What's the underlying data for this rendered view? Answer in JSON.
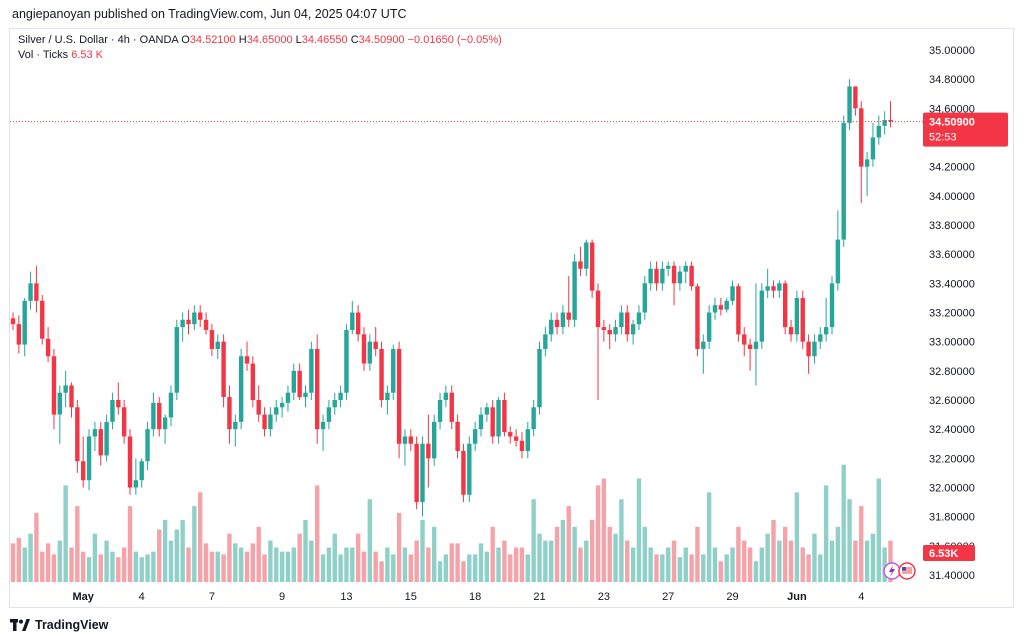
{
  "header": {
    "published_line": "angiepanoyan published on TradingView.com, Jun 04, 2025 04:07 UTC"
  },
  "legend": {
    "symbol": "Silver / U.S. Dollar · 4h · OANDA",
    "open_label": "O",
    "open": "34.52100",
    "high_label": "H",
    "high": "34.65000",
    "low_label": "L",
    "low": "34.46550",
    "close_label": "C",
    "close": "34.50900",
    "change": "−0.01650 (−0.05%)",
    "vol_label": "Vol · Ticks",
    "vol_value": "6.53 K"
  },
  "footer": {
    "brand": "TradingView"
  },
  "colors": {
    "up": "#26a69a",
    "down": "#f23645",
    "vol_up": "#8fd0c9",
    "vol_down": "#f5a3a8"
  },
  "chart_data": {
    "type": "candlestick",
    "timeframe": "4h",
    "ylim": [
      31.4,
      35.0
    ],
    "y_ticks": [
      "31.40000",
      "31.60000",
      "31.80000",
      "32.00000",
      "32.20000",
      "32.40000",
      "32.60000",
      "32.80000",
      "33.00000",
      "33.20000",
      "33.40000",
      "33.60000",
      "33.80000",
      "34.00000",
      "34.20000",
      "34.40000",
      "34.60000",
      "34.80000",
      "35.00000"
    ],
    "x_ticks": [
      {
        "label": "May",
        "index": 12
      },
      {
        "label": "4",
        "index": 22
      },
      {
        "label": "7",
        "index": 34
      },
      {
        "label": "9",
        "index": 46
      },
      {
        "label": "13",
        "index": 57
      },
      {
        "label": "15",
        "index": 68
      },
      {
        "label": "18",
        "index": 79
      },
      {
        "label": "21",
        "index": 90
      },
      {
        "label": "23",
        "index": 101
      },
      {
        "label": "27",
        "index": 112
      },
      {
        "label": "29",
        "index": 123
      },
      {
        "label": "Jun",
        "index": 134
      },
      {
        "label": "4",
        "index": 145
      }
    ],
    "last_price_label": "34.50900",
    "countdown_label": "52:53",
    "volume_label": "6.53K",
    "last_price": 34.509,
    "volume_max": 100,
    "candles": [
      {
        "o": 33.16,
        "h": 33.2,
        "l": 33.08,
        "c": 33.12,
        "v": 28
      },
      {
        "o": 33.12,
        "h": 33.18,
        "l": 32.92,
        "c": 32.98,
        "v": 32
      },
      {
        "o": 32.98,
        "h": 33.3,
        "l": 32.9,
        "c": 33.28,
        "v": 25
      },
      {
        "o": 33.28,
        "h": 33.48,
        "l": 33.22,
        "c": 33.4,
        "v": 35
      },
      {
        "o": 33.4,
        "h": 33.52,
        "l": 33.2,
        "c": 33.28,
        "v": 50
      },
      {
        "o": 33.28,
        "h": 33.32,
        "l": 32.98,
        "c": 33.02,
        "v": 22
      },
      {
        "o": 33.02,
        "h": 33.1,
        "l": 32.86,
        "c": 32.9,
        "v": 28
      },
      {
        "o": 32.9,
        "h": 32.95,
        "l": 32.4,
        "c": 32.5,
        "v": 20
      },
      {
        "o": 32.5,
        "h": 32.7,
        "l": 32.3,
        "c": 32.65,
        "v": 30
      },
      {
        "o": 32.65,
        "h": 32.8,
        "l": 32.55,
        "c": 32.7,
        "v": 70
      },
      {
        "o": 32.7,
        "h": 32.72,
        "l": 32.48,
        "c": 32.55,
        "v": 25
      },
      {
        "o": 32.55,
        "h": 32.6,
        "l": 32.1,
        "c": 32.18,
        "v": 55
      },
      {
        "o": 32.18,
        "h": 32.35,
        "l": 32.0,
        "c": 32.05,
        "v": 22
      },
      {
        "o": 32.05,
        "h": 32.4,
        "l": 31.98,
        "c": 32.35,
        "v": 18
      },
      {
        "o": 32.35,
        "h": 32.45,
        "l": 32.25,
        "c": 32.4,
        "v": 35
      },
      {
        "o": 32.4,
        "h": 32.45,
        "l": 32.15,
        "c": 32.22,
        "v": 20
      },
      {
        "o": 32.22,
        "h": 32.5,
        "l": 32.18,
        "c": 32.45,
        "v": 30
      },
      {
        "o": 32.45,
        "h": 32.65,
        "l": 32.4,
        "c": 32.6,
        "v": 22
      },
      {
        "o": 32.6,
        "h": 32.72,
        "l": 32.5,
        "c": 32.55,
        "v": 18
      },
      {
        "o": 32.55,
        "h": 32.6,
        "l": 32.3,
        "c": 32.35,
        "v": 25
      },
      {
        "o": 32.35,
        "h": 32.4,
        "l": 31.95,
        "c": 32.0,
        "v": 55
      },
      {
        "o": 32.0,
        "h": 32.2,
        "l": 31.95,
        "c": 32.05,
        "v": 22
      },
      {
        "o": 32.05,
        "h": 32.2,
        "l": 32.0,
        "c": 32.18,
        "v": 18
      },
      {
        "o": 32.18,
        "h": 32.45,
        "l": 32.12,
        "c": 32.4,
        "v": 20
      },
      {
        "o": 32.4,
        "h": 32.65,
        "l": 32.35,
        "c": 32.58,
        "v": 22
      },
      {
        "o": 32.58,
        "h": 32.62,
        "l": 32.35,
        "c": 32.4,
        "v": 38
      },
      {
        "o": 32.4,
        "h": 32.5,
        "l": 32.3,
        "c": 32.48,
        "v": 45
      },
      {
        "o": 32.48,
        "h": 32.7,
        "l": 32.42,
        "c": 32.65,
        "v": 30
      },
      {
        "o": 32.65,
        "h": 33.15,
        "l": 32.6,
        "c": 33.1,
        "v": 38
      },
      {
        "o": 33.1,
        "h": 33.2,
        "l": 33.0,
        "c": 33.15,
        "v": 45
      },
      {
        "o": 33.15,
        "h": 33.22,
        "l": 33.05,
        "c": 33.12,
        "v": 25
      },
      {
        "o": 33.12,
        "h": 33.25,
        "l": 33.08,
        "c": 33.2,
        "v": 55
      },
      {
        "o": 33.2,
        "h": 33.25,
        "l": 33.1,
        "c": 33.15,
        "v": 65
      },
      {
        "o": 33.15,
        "h": 33.2,
        "l": 33.05,
        "c": 33.08,
        "v": 28
      },
      {
        "o": 33.08,
        "h": 33.12,
        "l": 32.9,
        "c": 32.95,
        "v": 22
      },
      {
        "o": 32.95,
        "h": 33.05,
        "l": 32.88,
        "c": 33.0,
        "v": 22
      },
      {
        "o": 33.0,
        "h": 33.05,
        "l": 32.55,
        "c": 32.62,
        "v": 20
      },
      {
        "o": 32.62,
        "h": 32.7,
        "l": 32.3,
        "c": 32.4,
        "v": 35
      },
      {
        "o": 32.4,
        "h": 32.5,
        "l": 32.28,
        "c": 32.45,
        "v": 28
      },
      {
        "o": 32.45,
        "h": 32.95,
        "l": 32.4,
        "c": 32.9,
        "v": 25
      },
      {
        "o": 32.9,
        "h": 33.0,
        "l": 32.8,
        "c": 32.85,
        "v": 22
      },
      {
        "o": 32.85,
        "h": 32.9,
        "l": 32.55,
        "c": 32.6,
        "v": 28
      },
      {
        "o": 32.6,
        "h": 32.7,
        "l": 32.45,
        "c": 32.5,
        "v": 40
      },
      {
        "o": 32.5,
        "h": 32.55,
        "l": 32.35,
        "c": 32.4,
        "v": 20
      },
      {
        "o": 32.4,
        "h": 32.55,
        "l": 32.35,
        "c": 32.5,
        "v": 30
      },
      {
        "o": 32.5,
        "h": 32.6,
        "l": 32.45,
        "c": 32.55,
        "v": 25
      },
      {
        "o": 32.55,
        "h": 32.62,
        "l": 32.48,
        "c": 32.58,
        "v": 22
      },
      {
        "o": 32.58,
        "h": 32.7,
        "l": 32.52,
        "c": 32.65,
        "v": 22
      },
      {
        "o": 32.65,
        "h": 32.85,
        "l": 32.6,
        "c": 32.8,
        "v": 25
      },
      {
        "o": 32.8,
        "h": 32.85,
        "l": 32.6,
        "c": 32.62,
        "v": 35
      },
      {
        "o": 32.62,
        "h": 32.7,
        "l": 32.55,
        "c": 32.65,
        "v": 45
      },
      {
        "o": 32.65,
        "h": 33.0,
        "l": 32.6,
        "c": 32.95,
        "v": 30
      },
      {
        "o": 32.95,
        "h": 33.05,
        "l": 32.3,
        "c": 32.4,
        "v": 70
      },
      {
        "o": 32.4,
        "h": 32.5,
        "l": 32.25,
        "c": 32.45,
        "v": 20
      },
      {
        "o": 32.45,
        "h": 32.6,
        "l": 32.4,
        "c": 32.55,
        "v": 25
      },
      {
        "o": 32.55,
        "h": 32.65,
        "l": 32.5,
        "c": 32.6,
        "v": 35
      },
      {
        "o": 32.6,
        "h": 32.7,
        "l": 32.55,
        "c": 32.65,
        "v": 20
      },
      {
        "o": 32.65,
        "h": 33.12,
        "l": 32.6,
        "c": 33.08,
        "v": 25
      },
      {
        "o": 33.08,
        "h": 33.28,
        "l": 33.05,
        "c": 33.2,
        "v": 25
      },
      {
        "o": 33.2,
        "h": 33.25,
        "l": 33.0,
        "c": 33.05,
        "v": 35
      },
      {
        "o": 33.05,
        "h": 33.1,
        "l": 32.8,
        "c": 32.85,
        "v": 22
      },
      {
        "o": 32.85,
        "h": 33.05,
        "l": 32.8,
        "c": 33.0,
        "v": 60
      },
      {
        "o": 33.0,
        "h": 33.1,
        "l": 32.9,
        "c": 32.95,
        "v": 22
      },
      {
        "o": 32.95,
        "h": 33.0,
        "l": 32.55,
        "c": 32.6,
        "v": 15
      },
      {
        "o": 32.6,
        "h": 32.7,
        "l": 32.5,
        "c": 32.65,
        "v": 25
      },
      {
        "o": 32.65,
        "h": 32.98,
        "l": 32.6,
        "c": 32.95,
        "v": 20
      },
      {
        "o": 32.95,
        "h": 33.0,
        "l": 32.2,
        "c": 32.3,
        "v": 50
      },
      {
        "o": 32.3,
        "h": 32.4,
        "l": 32.15,
        "c": 32.35,
        "v": 25
      },
      {
        "o": 32.35,
        "h": 32.4,
        "l": 32.25,
        "c": 32.3,
        "v": 20
      },
      {
        "o": 32.3,
        "h": 32.35,
        "l": 31.85,
        "c": 31.9,
        "v": 30
      },
      {
        "o": 31.9,
        "h": 32.35,
        "l": 31.8,
        "c": 32.3,
        "v": 45
      },
      {
        "o": 32.3,
        "h": 32.5,
        "l": 32.0,
        "c": 32.2,
        "v": 25
      },
      {
        "o": 32.2,
        "h": 32.5,
        "l": 32.15,
        "c": 32.45,
        "v": 40
      },
      {
        "o": 32.45,
        "h": 32.65,
        "l": 32.4,
        "c": 32.6,
        "v": 15
      },
      {
        "o": 32.6,
        "h": 32.7,
        "l": 32.55,
        "c": 32.65,
        "v": 20
      },
      {
        "o": 32.65,
        "h": 32.7,
        "l": 32.4,
        "c": 32.45,
        "v": 28
      },
      {
        "o": 32.45,
        "h": 32.5,
        "l": 32.2,
        "c": 32.25,
        "v": 28
      },
      {
        "o": 32.25,
        "h": 32.3,
        "l": 31.9,
        "c": 31.95,
        "v": 15
      },
      {
        "o": 31.95,
        "h": 32.35,
        "l": 31.9,
        "c": 32.3,
        "v": 20
      },
      {
        "o": 32.3,
        "h": 32.45,
        "l": 32.25,
        "c": 32.4,
        "v": 20
      },
      {
        "o": 32.4,
        "h": 32.55,
        "l": 32.35,
        "c": 32.5,
        "v": 28
      },
      {
        "o": 32.5,
        "h": 32.58,
        "l": 32.45,
        "c": 32.55,
        "v": 22
      },
      {
        "o": 32.55,
        "h": 32.6,
        "l": 32.3,
        "c": 32.35,
        "v": 40
      },
      {
        "o": 32.35,
        "h": 32.62,
        "l": 32.3,
        "c": 32.6,
        "v": 25
      },
      {
        "o": 32.6,
        "h": 32.65,
        "l": 32.35,
        "c": 32.38,
        "v": 30
      },
      {
        "o": 32.38,
        "h": 32.42,
        "l": 32.3,
        "c": 32.35,
        "v": 20
      },
      {
        "o": 32.35,
        "h": 32.4,
        "l": 32.28,
        "c": 32.32,
        "v": 25
      },
      {
        "o": 32.32,
        "h": 32.38,
        "l": 32.2,
        "c": 32.25,
        "v": 25
      },
      {
        "o": 32.25,
        "h": 32.45,
        "l": 32.2,
        "c": 32.4,
        "v": 20
      },
      {
        "o": 32.4,
        "h": 32.6,
        "l": 32.35,
        "c": 32.55,
        "v": 60
      },
      {
        "o": 32.55,
        "h": 33.0,
        "l": 32.5,
        "c": 32.95,
        "v": 35
      },
      {
        "o": 32.95,
        "h": 33.1,
        "l": 32.9,
        "c": 33.05,
        "v": 30
      },
      {
        "o": 33.05,
        "h": 33.2,
        "l": 33.0,
        "c": 33.15,
        "v": 30
      },
      {
        "o": 33.15,
        "h": 33.2,
        "l": 33.05,
        "c": 33.1,
        "v": 40
      },
      {
        "o": 33.1,
        "h": 33.25,
        "l": 33.05,
        "c": 33.2,
        "v": 45
      },
      {
        "o": 33.2,
        "h": 33.45,
        "l": 33.1,
        "c": 33.15,
        "v": 55
      },
      {
        "o": 33.15,
        "h": 33.6,
        "l": 33.1,
        "c": 33.55,
        "v": 40
      },
      {
        "o": 33.55,
        "h": 33.65,
        "l": 33.45,
        "c": 33.5,
        "v": 25
      },
      {
        "o": 33.5,
        "h": 33.7,
        "l": 33.45,
        "c": 33.68,
        "v": 30
      },
      {
        "o": 33.68,
        "h": 33.7,
        "l": 33.3,
        "c": 33.35,
        "v": 45
      },
      {
        "o": 33.35,
        "h": 33.4,
        "l": 32.6,
        "c": 33.1,
        "v": 70
      },
      {
        "o": 33.1,
        "h": 33.15,
        "l": 33.0,
        "c": 33.08,
        "v": 75
      },
      {
        "o": 33.08,
        "h": 33.12,
        "l": 32.95,
        "c": 33.05,
        "v": 40
      },
      {
        "o": 33.05,
        "h": 33.15,
        "l": 33.0,
        "c": 33.1,
        "v": 35
      },
      {
        "o": 33.1,
        "h": 33.25,
        "l": 33.05,
        "c": 33.2,
        "v": 60
      },
      {
        "o": 33.2,
        "h": 33.25,
        "l": 33.0,
        "c": 33.05,
        "v": 30
      },
      {
        "o": 33.05,
        "h": 33.15,
        "l": 32.98,
        "c": 33.12,
        "v": 25
      },
      {
        "o": 33.12,
        "h": 33.25,
        "l": 33.08,
        "c": 33.2,
        "v": 75
      },
      {
        "o": 33.2,
        "h": 33.45,
        "l": 33.15,
        "c": 33.4,
        "v": 40
      },
      {
        "o": 33.4,
        "h": 33.55,
        "l": 33.35,
        "c": 33.5,
        "v": 25
      },
      {
        "o": 33.5,
        "h": 33.55,
        "l": 33.35,
        "c": 33.4,
        "v": 20
      },
      {
        "o": 33.4,
        "h": 33.55,
        "l": 33.35,
        "c": 33.5,
        "v": 20
      },
      {
        "o": 33.5,
        "h": 33.55,
        "l": 33.45,
        "c": 33.52,
        "v": 25
      },
      {
        "o": 33.52,
        "h": 33.55,
        "l": 33.25,
        "c": 33.4,
        "v": 30
      },
      {
        "o": 33.4,
        "h": 33.52,
        "l": 33.35,
        "c": 33.48,
        "v": 18
      },
      {
        "o": 33.48,
        "h": 33.55,
        "l": 33.4,
        "c": 33.52,
        "v": 25
      },
      {
        "o": 33.52,
        "h": 33.55,
        "l": 33.35,
        "c": 33.38,
        "v": 20
      },
      {
        "o": 33.38,
        "h": 33.4,
        "l": 32.9,
        "c": 32.95,
        "v": 40
      },
      {
        "o": 32.95,
        "h": 33.05,
        "l": 32.78,
        "c": 33.0,
        "v": 20
      },
      {
        "o": 33.0,
        "h": 33.25,
        "l": 32.95,
        "c": 33.2,
        "v": 65
      },
      {
        "o": 33.2,
        "h": 33.3,
        "l": 33.15,
        "c": 33.25,
        "v": 25
      },
      {
        "o": 33.25,
        "h": 33.3,
        "l": 33.18,
        "c": 33.22,
        "v": 15
      },
      {
        "o": 33.22,
        "h": 33.3,
        "l": 33.2,
        "c": 33.28,
        "v": 20
      },
      {
        "o": 33.28,
        "h": 33.42,
        "l": 33.25,
        "c": 33.38,
        "v": 25
      },
      {
        "o": 33.38,
        "h": 33.4,
        "l": 33.0,
        "c": 33.05,
        "v": 40
      },
      {
        "o": 33.05,
        "h": 33.1,
        "l": 32.9,
        "c": 32.98,
        "v": 30
      },
      {
        "o": 32.98,
        "h": 33.02,
        "l": 32.8,
        "c": 32.95,
        "v": 25
      },
      {
        "o": 32.95,
        "h": 33.4,
        "l": 32.7,
        "c": 33.0,
        "v": 15
      },
      {
        "o": 33.0,
        "h": 33.4,
        "l": 32.95,
        "c": 33.35,
        "v": 25
      },
      {
        "o": 33.35,
        "h": 33.5,
        "l": 33.3,
        "c": 33.38,
        "v": 35
      },
      {
        "o": 33.38,
        "h": 33.42,
        "l": 33.3,
        "c": 33.35,
        "v": 45
      },
      {
        "o": 33.35,
        "h": 33.42,
        "l": 33.3,
        "c": 33.4,
        "v": 30
      },
      {
        "o": 33.4,
        "h": 33.42,
        "l": 33.05,
        "c": 33.1,
        "v": 40
      },
      {
        "o": 33.1,
        "h": 33.15,
        "l": 33.0,
        "c": 33.05,
        "v": 30
      },
      {
        "o": 33.05,
        "h": 33.35,
        "l": 33.0,
        "c": 33.3,
        "v": 65
      },
      {
        "o": 33.3,
        "h": 33.35,
        "l": 32.95,
        "c": 33.0,
        "v": 25
      },
      {
        "o": 33.0,
        "h": 33.05,
        "l": 32.78,
        "c": 32.9,
        "v": 20
      },
      {
        "o": 32.9,
        "h": 33.05,
        "l": 32.85,
        "c": 33.0,
        "v": 35
      },
      {
        "o": 33.0,
        "h": 33.1,
        "l": 32.95,
        "c": 33.05,
        "v": 20
      },
      {
        "o": 33.05,
        "h": 33.3,
        "l": 33.0,
        "c": 33.1,
        "v": 70
      },
      {
        "o": 33.1,
        "h": 33.45,
        "l": 33.05,
        "c": 33.4,
        "v": 30
      },
      {
        "o": 33.4,
        "h": 33.9,
        "l": 33.35,
        "c": 33.7,
        "v": 40
      },
      {
        "o": 33.7,
        "h": 34.55,
        "l": 33.65,
        "c": 34.5,
        "v": 85
      },
      {
        "o": 34.5,
        "h": 34.8,
        "l": 34.45,
        "c": 34.75,
        "v": 60
      },
      {
        "o": 34.75,
        "h": 34.75,
        "l": 34.55,
        "c": 34.6,
        "v": 30
      },
      {
        "o": 34.6,
        "h": 34.65,
        "l": 33.95,
        "c": 34.2,
        "v": 55
      },
      {
        "o": 34.2,
        "h": 34.3,
        "l": 34.0,
        "c": 34.25,
        "v": 30
      },
      {
        "o": 34.25,
        "h": 34.5,
        "l": 34.2,
        "c": 34.4,
        "v": 35
      },
      {
        "o": 34.4,
        "h": 34.55,
        "l": 34.35,
        "c": 34.48,
        "v": 75
      },
      {
        "o": 34.48,
        "h": 34.58,
        "l": 34.42,
        "c": 34.52,
        "v": 25
      },
      {
        "o": 34.52,
        "h": 34.65,
        "l": 34.47,
        "c": 34.51,
        "v": 30
      }
    ]
  }
}
